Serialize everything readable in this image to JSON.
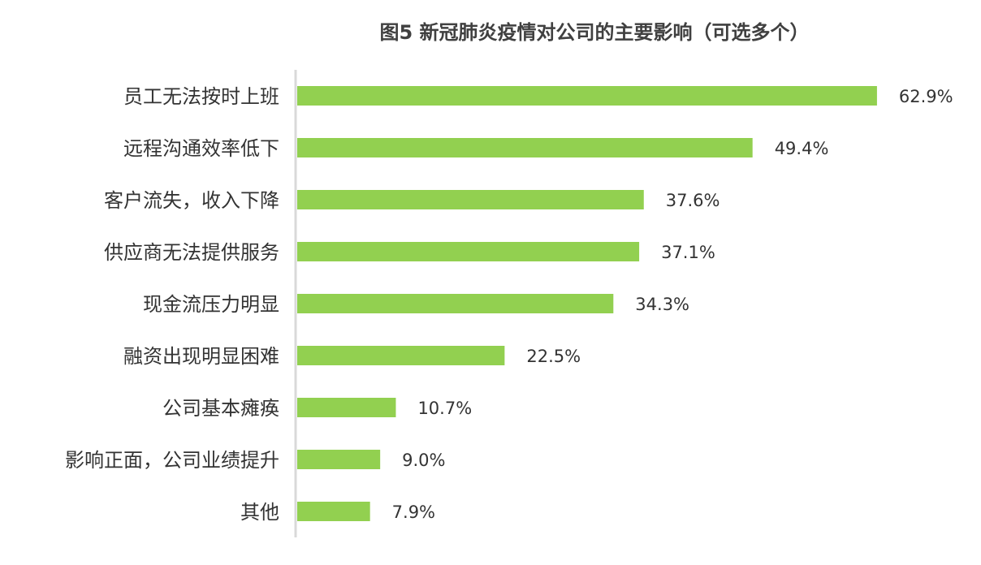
{
  "chart_data": {
    "type": "bar",
    "orientation": "horizontal",
    "title": "图5 新冠肺炎疫情对公司的主要影响（可选多个）",
    "categories": [
      "员工无法按时上班",
      "远程沟通效率低下",
      "客户流失，收入下降",
      "供应商无法提供服务",
      "现金流压力明显",
      "融资出现明显困难",
      "公司基本瘫痪",
      "影响正面，公司业绩提升",
      "其他"
    ],
    "values": [
      62.9,
      49.4,
      37.6,
      37.1,
      34.3,
      22.5,
      10.7,
      9.0,
      7.9
    ],
    "value_labels": [
      "62.9%",
      "49.4%",
      "37.6%",
      "37.1%",
      "34.3%",
      "22.5%",
      "10.7%",
      "9.0%",
      "7.9%"
    ],
    "value_unit": "%",
    "xlim": [
      0,
      70
    ],
    "bar_color": "#92d050",
    "axis_color": "#d9d9d9",
    "grid": false,
    "legend": false
  }
}
